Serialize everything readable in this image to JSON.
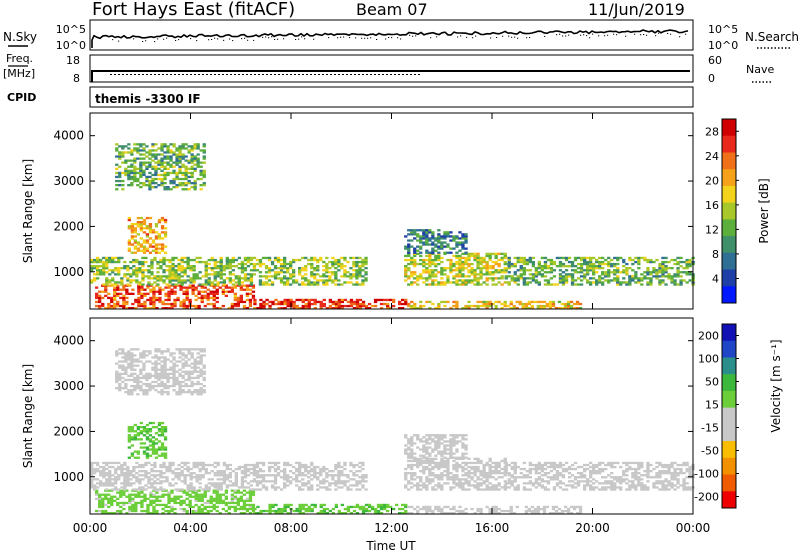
{
  "header": {
    "station": "Fort Hays East (fitACF)",
    "beam": "Beam 07",
    "date": "11/Jun/2019"
  },
  "status_panels": {
    "nsky": {
      "label": "N.Sky",
      "ticks": [
        "10^5",
        "10^0"
      ],
      "right_label": "N.Search",
      "right_ticks": [
        "10^5",
        "10^0"
      ]
    },
    "freq": {
      "label_top": "Freq.",
      "label_bottom": "[MHz]",
      "ticks": [
        "18",
        "8"
      ],
      "right_label": "Nave",
      "right_ticks": [
        "60",
        "0"
      ]
    },
    "cpid": {
      "label": "CPID",
      "value": "themis -3300 IF"
    }
  },
  "colors": {
    "power_scale": [
      "#0018ff",
      "#1f3fa8",
      "#2f6f93",
      "#3f8f6a",
      "#5caf3a",
      "#a8c82a",
      "#f2d21a",
      "#f5a21a",
      "#f0701a",
      "#e8281a",
      "#d00000"
    ],
    "velocity_scale": [
      "#ee0000",
      "#f05a00",
      "#f29000",
      "#f8bc00",
      "#c8c8c8",
      "#c8c8c8",
      "#6ccf3a",
      "#3cb83c",
      "#2a8f8a",
      "#2046c8",
      "#1010b4"
    ],
    "ground_scatter": "#c8c8c8"
  },
  "chart_data": [
    {
      "type": "heatmap",
      "name_printed": "",
      "ylabel": "Slant Range [km]",
      "xlabel": "",
      "x_ticks": [
        "00:00",
        "04:00",
        "08:00",
        "12:00",
        "16:00",
        "20:00",
        "00:00"
      ],
      "y_ticks": [
        1000,
        2000,
        3000,
        4000
      ],
      "xlim_hours": [
        0,
        24
      ],
      "ylim_km": [
        180,
        4500
      ],
      "colorbar": {
        "label": "Power [dB]",
        "ticks": [
          4,
          8,
          12,
          16,
          20,
          24,
          28
        ],
        "range": [
          0,
          30
        ]
      },
      "echo_regions": [
        {
          "t": [
            0.2,
            6.5
          ],
          "r": [
            180,
            700
          ],
          "power": 24
        },
        {
          "t": [
            6.5,
            12.5
          ],
          "r": [
            180,
            400
          ],
          "power": 26
        },
        {
          "t": [
            12.5,
            19.5
          ],
          "r": [
            180,
            350
          ],
          "power": 18
        },
        {
          "t": [
            0.0,
            11.0
          ],
          "r": [
            700,
            1300
          ],
          "power": 14
        },
        {
          "t": [
            12.5,
            16.5
          ],
          "r": [
            700,
            1400
          ],
          "power": 16
        },
        {
          "t": [
            16.5,
            24.0
          ],
          "r": [
            700,
            1300
          ],
          "power": 12
        },
        {
          "t": [
            1.5,
            3.0
          ],
          "r": [
            1400,
            2200
          ],
          "power": 20
        },
        {
          "t": [
            12.5,
            15.0
          ],
          "r": [
            1400,
            1900
          ],
          "power": 8
        },
        {
          "t": [
            1.0,
            4.5
          ],
          "r": [
            2800,
            3800
          ],
          "power": 12
        }
      ]
    },
    {
      "type": "heatmap",
      "name_printed": "",
      "ylabel": "Slant Range [km]",
      "xlabel": "Time UT",
      "x_ticks": [
        "00:00",
        "04:00",
        "08:00",
        "12:00",
        "16:00",
        "20:00",
        "00:00"
      ],
      "y_ticks": [
        1000,
        2000,
        3000,
        4000
      ],
      "xlim_hours": [
        0,
        24
      ],
      "ylim_km": [
        180,
        4500
      ],
      "colorbar": {
        "label": "Velocity [m s⁻¹]",
        "ticks": [
          200,
          100,
          50,
          15,
          -15,
          -50,
          -100,
          -200
        ],
        "range": [
          -250,
          250
        ]
      },
      "echo_regions": [
        {
          "t": [
            0.2,
            6.5
          ],
          "r": [
            180,
            700
          ],
          "velocity": 40
        },
        {
          "t": [
            6.5,
            12.5
          ],
          "r": [
            180,
            400
          ],
          "velocity": 60
        },
        {
          "t": [
            12.5,
            19.5
          ],
          "r": [
            180,
            350
          ],
          "velocity": 0
        },
        {
          "t": [
            0.0,
            11.0
          ],
          "r": [
            700,
            1300
          ],
          "velocity": 0
        },
        {
          "t": [
            12.5,
            16.5
          ],
          "r": [
            700,
            1400
          ],
          "velocity": 0
        },
        {
          "t": [
            16.5,
            24.0
          ],
          "r": [
            700,
            1300
          ],
          "velocity": 0
        },
        {
          "t": [
            1.5,
            3.0
          ],
          "r": [
            1400,
            2200
          ],
          "velocity": 60
        },
        {
          "t": [
            12.5,
            15.0
          ],
          "r": [
            1400,
            1900
          ],
          "velocity": 0
        },
        {
          "t": [
            1.0,
            4.5
          ],
          "r": [
            2800,
            3800
          ],
          "velocity": 0
        }
      ]
    }
  ]
}
